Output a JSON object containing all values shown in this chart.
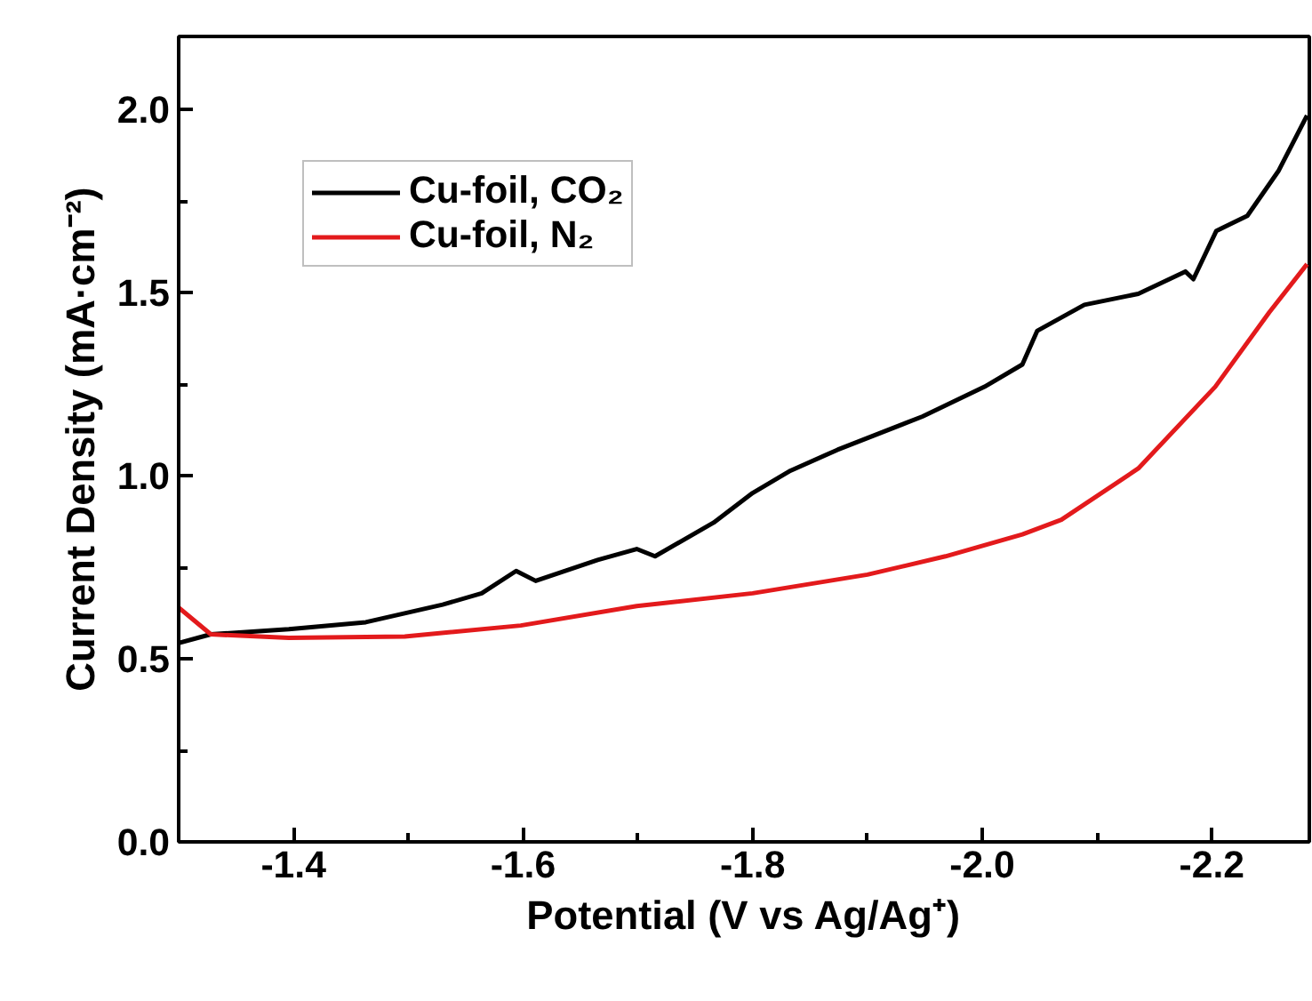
{
  "chart_data": {
    "type": "line",
    "xlabel": "Potential (V vs Ag/Ag⁺)",
    "ylabel": "Current Density (mA·cm⁻²)",
    "xlim": [
      -1.3,
      -2.285
    ],
    "ylim": [
      0,
      2.2
    ],
    "xticks": [
      -1.4,
      {
        "value": -1.5,
        "label": null
      },
      -1.6,
      {
        "value": -1.7,
        "label": null
      },
      -1.8,
      {
        "value": -1.9,
        "label": null
      },
      {
        "value": -2.0,
        "label": "-2.0"
      },
      {
        "value": -2.1,
        "label": null
      },
      -2.2
    ],
    "yticks": [
      {
        "value": 0,
        "label": "0.0"
      },
      {
        "value": 0.25,
        "label": null
      },
      0.5,
      {
        "value": 0.75,
        "label": null
      },
      {
        "value": 1,
        "label": "1.0"
      },
      {
        "value": 1.25,
        "label": null
      },
      1.5,
      {
        "value": 1.75,
        "label": null
      },
      {
        "value": 2,
        "label": "2.0"
      }
    ],
    "grid": false,
    "legend": "top left",
    "marker": "none",
    "line_style": "solid",
    "series": [
      {
        "name": "Cu-foil, CO₂",
        "color": "#000000",
        "x": [
          -1.3,
          -1.328,
          -1.396,
          -1.463,
          -1.53,
          -1.564,
          -1.594,
          -1.611,
          -1.665,
          -1.699,
          -1.715,
          -1.766,
          -1.8,
          -1.833,
          -1.874,
          -1.948,
          -2.002,
          -2.035,
          -2.048,
          -2.089,
          -2.136,
          -2.177,
          -2.184,
          -2.204,
          -2.231,
          -2.258,
          -2.283
        ],
        "values": [
          0.543,
          0.567,
          0.581,
          0.6,
          0.648,
          0.679,
          0.74,
          0.713,
          0.77,
          0.8,
          0.78,
          0.872,
          0.953,
          1.014,
          1.071,
          1.162,
          1.243,
          1.304,
          1.396,
          1.467,
          1.497,
          1.558,
          1.537,
          1.669,
          1.71,
          1.832,
          1.984
        ]
      },
      {
        "name": "Cu-foil, N₂",
        "color": "#e31a1c",
        "x": [
          -1.3,
          -1.328,
          -1.396,
          -1.497,
          -1.598,
          -1.699,
          -1.8,
          -1.9,
          -1.968,
          -2.035,
          -2.069,
          -2.136,
          -2.203,
          -2.25,
          -2.283
        ],
        "values": [
          0.64,
          0.567,
          0.557,
          0.561,
          0.591,
          0.644,
          0.679,
          0.73,
          0.78,
          0.84,
          0.88,
          1.02,
          1.243,
          1.446,
          1.578
        ]
      }
    ]
  }
}
